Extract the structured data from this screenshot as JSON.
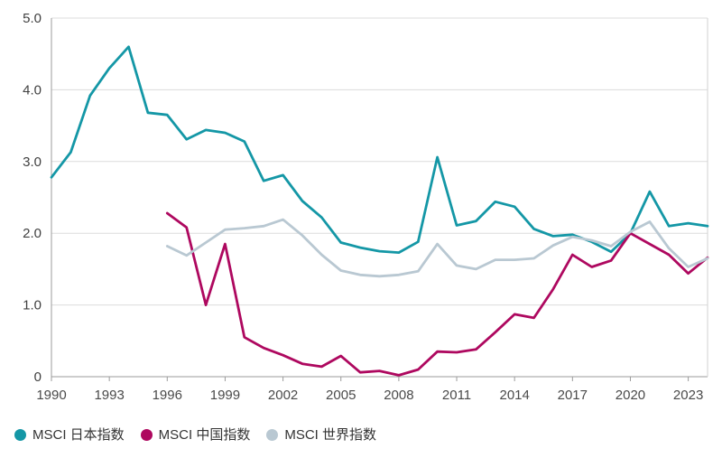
{
  "chart_data": {
    "type": "line",
    "title": "",
    "xlabel": "",
    "ylabel": "",
    "ylim": [
      0,
      5.0
    ],
    "grid": true,
    "legend_position": "bottom",
    "x": [
      1990,
      1991,
      1992,
      1993,
      1994,
      1995,
      1996,
      1997,
      1998,
      1999,
      2000,
      2001,
      2002,
      2003,
      2004,
      2005,
      2006,
      2007,
      2008,
      2009,
      2010,
      2011,
      2012,
      2013,
      2014,
      2015,
      2016,
      2017,
      2018,
      2019,
      2020,
      2021,
      2022,
      2023,
      2024
    ],
    "series": [
      {
        "key": "japan",
        "name": "MSCI 日本指数",
        "color": "#1497a6",
        "values": [
          2.78,
          3.13,
          3.92,
          4.3,
          4.6,
          3.68,
          3.65,
          3.31,
          3.44,
          3.4,
          3.28,
          2.73,
          2.81,
          2.45,
          2.22,
          1.87,
          1.8,
          1.75,
          1.73,
          1.88,
          3.06,
          2.11,
          2.17,
          2.44,
          2.37,
          2.06,
          1.96,
          1.98,
          1.88,
          1.74,
          2.0,
          2.58,
          2.1,
          2.14,
          2.1
        ]
      },
      {
        "key": "china",
        "name": "MSCI 中国指数",
        "color": "#ae085f",
        "values": [
          null,
          null,
          null,
          null,
          null,
          null,
          2.28,
          2.08,
          1.0,
          1.85,
          0.55,
          0.4,
          0.3,
          0.18,
          0.14,
          0.29,
          0.06,
          0.08,
          0.02,
          0.1,
          0.35,
          0.34,
          0.38,
          0.62,
          0.87,
          0.82,
          1.22,
          1.7,
          1.53,
          1.62,
          2.0,
          1.85,
          1.7,
          1.44,
          1.66
        ]
      },
      {
        "key": "world",
        "name": "MSCI 世界指数",
        "color": "#b9c8d2",
        "values": [
          null,
          null,
          null,
          null,
          null,
          null,
          1.82,
          1.69,
          1.87,
          2.05,
          2.07,
          2.1,
          2.19,
          1.97,
          1.7,
          1.48,
          1.42,
          1.4,
          1.42,
          1.47,
          1.85,
          1.55,
          1.5,
          1.63,
          1.63,
          1.65,
          1.83,
          1.95,
          1.9,
          1.82,
          2.02,
          2.16,
          1.79,
          1.53,
          1.65
        ]
      }
    ],
    "y_axis": {
      "ticks": [
        {
          "value": 0,
          "label": "0"
        },
        {
          "value": 1,
          "label": "1.0"
        },
        {
          "value": 2,
          "label": "2.0"
        },
        {
          "value": 3,
          "label": "3.0"
        },
        {
          "value": 4,
          "label": "4.0"
        },
        {
          "value": 5,
          "label": "5.0"
        }
      ]
    },
    "x_axis": {
      "tick_years": [
        1990,
        1993,
        1996,
        1999,
        2002,
        2005,
        2008,
        2011,
        2014,
        2017,
        2020,
        2023
      ]
    }
  },
  "legend": {
    "items": [
      {
        "label": "MSCI 日本指数",
        "color": "#1497a6"
      },
      {
        "label": "MSCI 中国指数",
        "color": "#ae085f"
      },
      {
        "label": "MSCI 世界指数",
        "color": "#b9c8d2"
      }
    ]
  },
  "style": {
    "gridline_color": "#dcdcdc",
    "axis_color": "#9b9b9b",
    "right_border_color": "#d2d2d2",
    "axis_label_color": "#404040",
    "x_label_color": "#4a4a4a"
  }
}
